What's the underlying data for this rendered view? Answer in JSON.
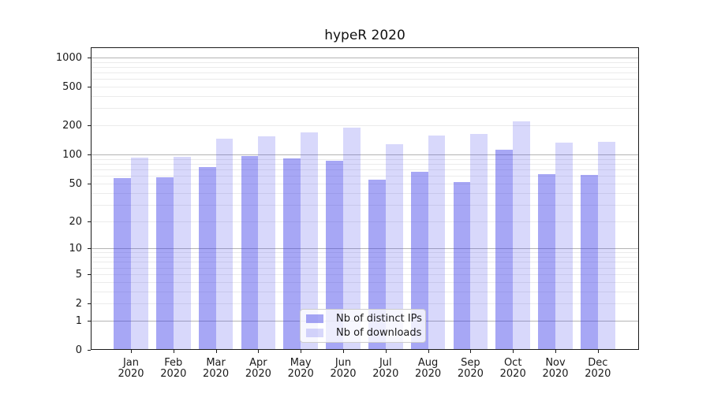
{
  "chart_data": {
    "type": "bar",
    "title": "hypeR 2020",
    "xlabel": "",
    "ylabel": "",
    "categories": [
      "Jan 2020",
      "Feb 2020",
      "Mar 2020",
      "Apr 2020",
      "May 2020",
      "Jun 2020",
      "Jul 2020",
      "Aug 2020",
      "Sep 2020",
      "Oct 2020",
      "Nov 2020",
      "Dec 2020"
    ],
    "series": [
      {
        "name": "Nb of distinct IPs",
        "fill": "rgba(60,60,233,0.45)",
        "color_on_white": "#a7a7f5",
        "values": [
          57,
          58,
          74,
          96,
          91,
          86,
          55,
          66,
          52,
          112,
          62,
          61
        ]
      },
      {
        "name": "Nb of downloads",
        "fill": "rgba(60,60,233,0.20)",
        "color_on_white": "#d8d8f9",
        "values": [
          93,
          95,
          146,
          154,
          169,
          189,
          128,
          157,
          163,
          220,
          133,
          135
        ]
      }
    ],
    "y_axis": {
      "scale": "log1p",
      "min": 0,
      "max": 1271,
      "ticks": [
        0,
        1,
        2,
        5,
        10,
        20,
        50,
        100,
        200,
        500,
        1000
      ],
      "grid_major": [
        1,
        10,
        100,
        1000
      ],
      "grid_minor": [
        2,
        3,
        4,
        5,
        6,
        7,
        8,
        9,
        20,
        30,
        40,
        50,
        60,
        70,
        80,
        90,
        200,
        300,
        400,
        500,
        600,
        700,
        800,
        900
      ]
    },
    "legend": {
      "position": "lower center"
    },
    "grid": true
  },
  "colors": {
    "grid_minor": "#ebebeb",
    "grid_major": "#b4b4b4",
    "spine": "#1a1a1a",
    "text": "#111111",
    "legend_border": "#cccccc",
    "legend_bg": "rgba(255,255,255,0.8)"
  }
}
